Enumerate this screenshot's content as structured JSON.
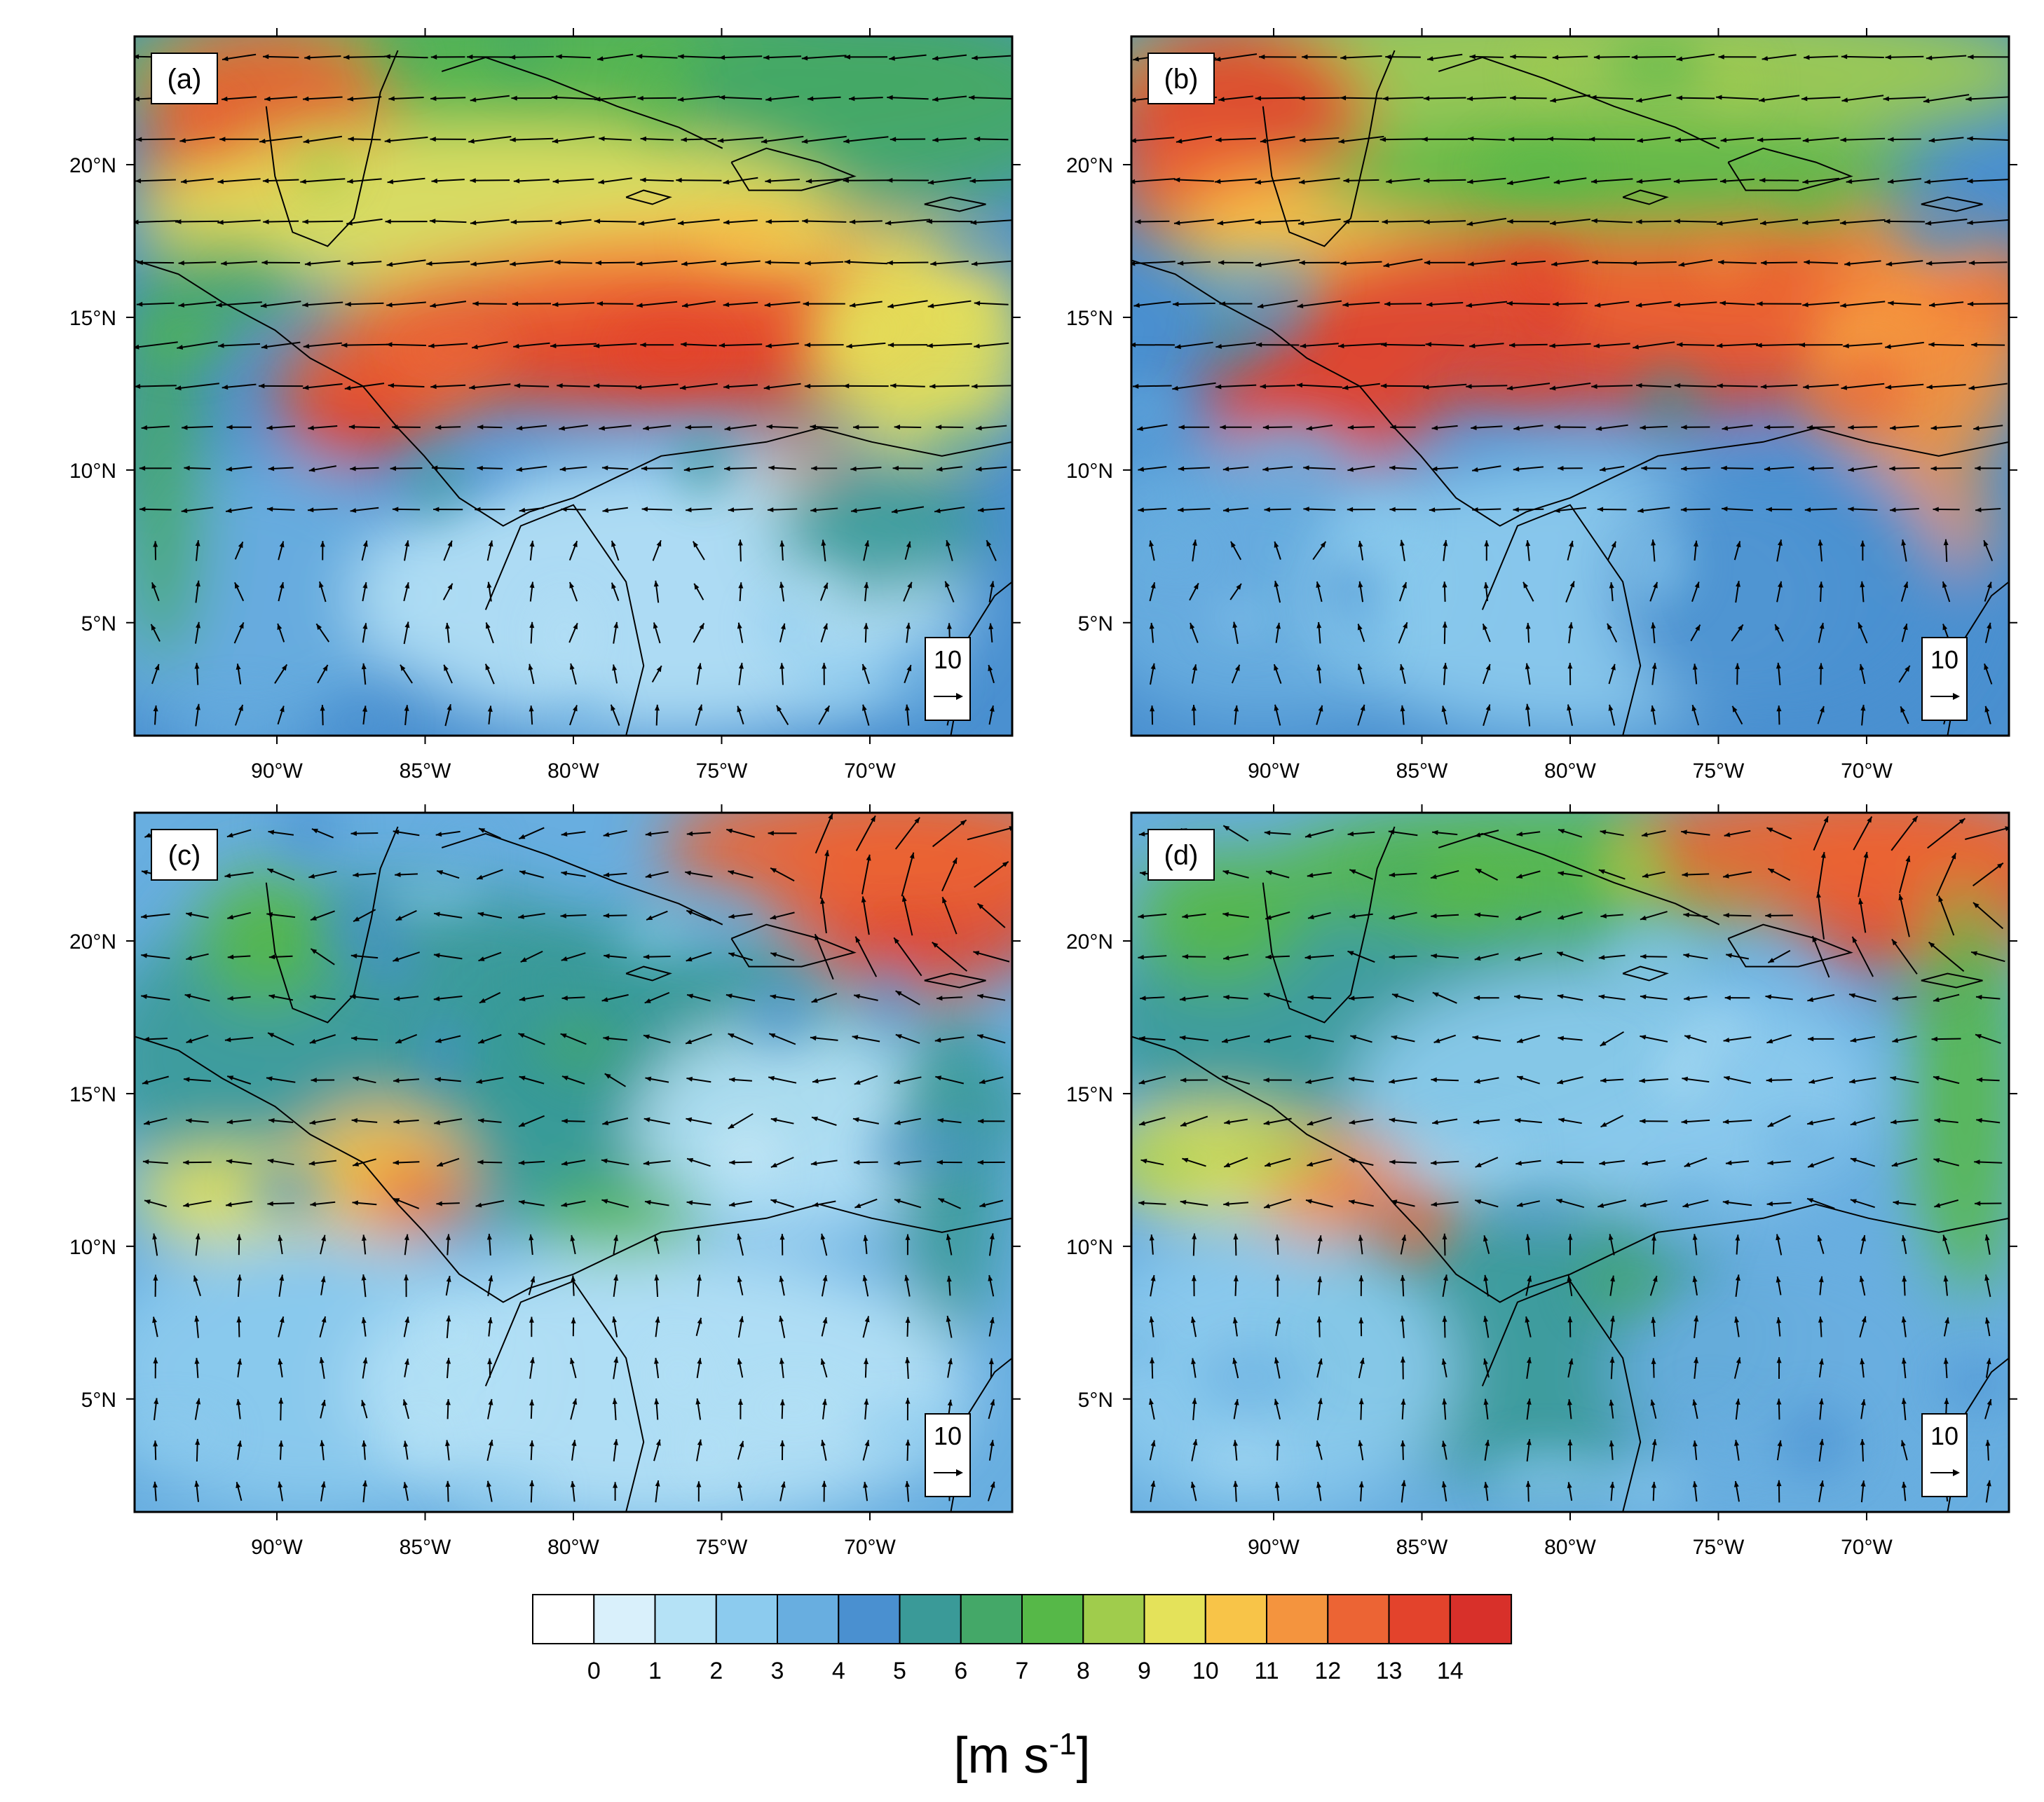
{
  "panels": [
    {
      "id": "a",
      "label": "(a)",
      "pattern": "a"
    },
    {
      "id": "b",
      "label": "(b)",
      "pattern": "b"
    },
    {
      "id": "c",
      "label": "(c)",
      "pattern": "c"
    },
    {
      "id": "d",
      "label": "(d)",
      "pattern": "d"
    }
  ],
  "axes": {
    "lon_ticks": [
      "90°W",
      "85°W",
      "80°W",
      "75°W",
      "70°W"
    ],
    "lon_values": [
      -90,
      -85,
      -80,
      -75,
      -70
    ],
    "lat_ticks": [
      "5°N",
      "10°N",
      "15°N",
      "20°N"
    ],
    "lat_values": [
      5,
      10,
      15,
      20
    ],
    "lon_range": [
      -94.8,
      -65.2
    ],
    "lat_range": [
      1.3,
      24.2
    ]
  },
  "reference_vector": {
    "label": "10",
    "magnitude": 10
  },
  "colorbar": {
    "tick_labels": [
      "0",
      "1",
      "2",
      "3",
      "4",
      "5",
      "6",
      "7",
      "8",
      "9",
      "10",
      "11",
      "12",
      "13",
      "14"
    ],
    "colors": [
      "#ffffff",
      "#d9f0fb",
      "#b5e2f6",
      "#8ccbee",
      "#68aee0",
      "#4a90d0",
      "#3a9a98",
      "#44a868",
      "#56b848",
      "#a0cc4c",
      "#e4e25a",
      "#f8c448",
      "#f4943e",
      "#ec6434",
      "#e3432c",
      "#d8302a"
    ],
    "unit_base": "[m s",
    "unit_sup": "-1",
    "unit_close": "]"
  }
}
